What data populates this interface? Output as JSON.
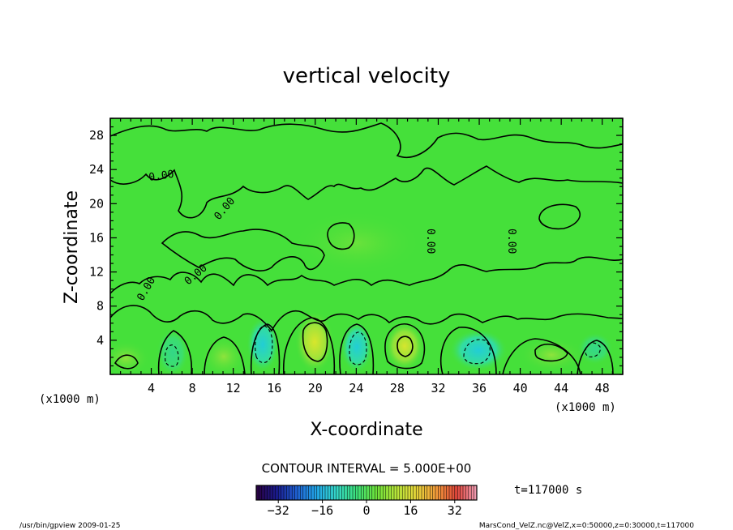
{
  "chart_data": {
    "type": "contour",
    "title": "vertical velocity",
    "xlabel": "X-coordinate",
    "ylabel": "Z-coordinate",
    "x_unit_left": "(x1000 m)",
    "x_unit_right": "(x1000 m)",
    "xlim": [
      0,
      50
    ],
    "ylim": [
      0,
      30
    ],
    "x_ticks": [
      4,
      8,
      12,
      16,
      20,
      24,
      28,
      32,
      36,
      40,
      44,
      48
    ],
    "y_ticks": [
      4,
      8,
      12,
      16,
      20,
      24,
      28
    ],
    "contour_interval_text": "CONTOUR INTERVAL = 5.000E+00",
    "time_text": "t=117000 s",
    "colorbar": {
      "min": -40,
      "max": 40,
      "ticks": [
        -32,
        -16,
        0,
        16,
        32
      ],
      "colors": [
        "#2a0040",
        "#1a1a8c",
        "#1f5fd1",
        "#22a6e8",
        "#35d7c7",
        "#3ce07a",
        "#6ee23a",
        "#b8e63a",
        "#e6d43a",
        "#f29a3a",
        "#e0453a",
        "#f2a0b8"
      ]
    },
    "contour_labels": [
      "0.00",
      "0.00",
      "0.00",
      "0.00",
      "0.00",
      "0.00"
    ],
    "background_value_color": "#33e03c"
  },
  "footer": {
    "left": "/usr/bin/gpview   2009-01-25",
    "right": "MarsCond_VelZ.nc@VelZ,x=0:50000,z=0:30000,t=117000"
  }
}
